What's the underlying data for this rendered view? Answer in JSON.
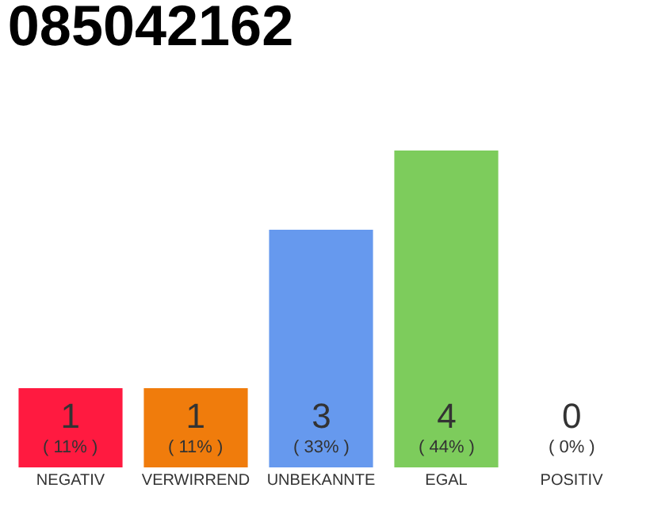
{
  "chart_data": {
    "type": "bar",
    "title": "085042162",
    "categories": [
      "NEGATIV",
      "VERWIRREND",
      "UNBEKANNTE",
      "EGAL",
      "POSITIV"
    ],
    "values": [
      1,
      1,
      3,
      4,
      0
    ],
    "colors": [
      "#ff1a40",
      "#f07c0c",
      "#6699ee",
      "#7dcc5c",
      "#cccccc"
    ],
    "value_labels": [
      "1\n( 11% )",
      "1\n( 11% )",
      "3\n( 33% )",
      "4\n( 44% )",
      "0\n( 0% )"
    ],
    "ylim": [
      0,
      4
    ],
    "tick_labels": "x",
    "legend": false
  }
}
